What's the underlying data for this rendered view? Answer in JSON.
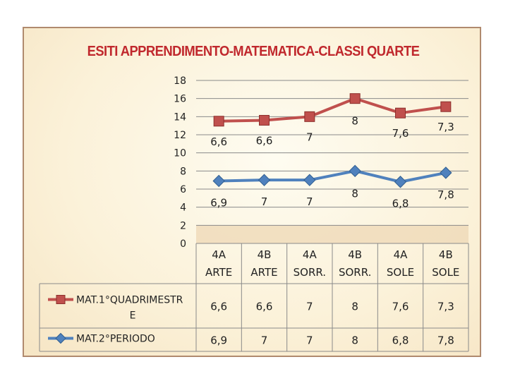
{
  "chart_data": {
    "type": "line",
    "title": "ESITI APPRENDIMENTO-MATEMATICA-CLASSI QUARTE",
    "categories": [
      [
        "4A",
        "ARTE"
      ],
      [
        "4B",
        "ARTE"
      ],
      [
        "4A",
        "SORR."
      ],
      [
        "4B",
        "SORR."
      ],
      [
        "4A",
        "SOLE"
      ],
      [
        "4B",
        "SOLE"
      ]
    ],
    "ylim": [
      0,
      18
    ],
    "yticks": [
      "0",
      "2",
      "4",
      "6",
      "8",
      "10",
      "12",
      "14",
      "16",
      "18"
    ],
    "grid": true,
    "legend_position": "bottom",
    "series": [
      {
        "name_lines": [
          "MAT.1°QUADRIMESTR",
          "E"
        ],
        "color": "#c0504d",
        "marker": "square",
        "values": [
          13.5,
          13.6,
          14.0,
          16.0,
          14.4,
          15.1
        ],
        "labels": [
          "6,6",
          "6,6",
          "7",
          "8",
          "7,6",
          "7,3"
        ]
      },
      {
        "name_lines": [
          "MAT.2°PERIODO"
        ],
        "color": "#4f81bd",
        "marker": "diamond",
        "values": [
          6.9,
          7.0,
          7.0,
          8.0,
          6.8,
          7.8
        ],
        "labels": [
          "6,9",
          "7",
          "7",
          "8",
          "6,8",
          "7,8"
        ]
      }
    ]
  }
}
